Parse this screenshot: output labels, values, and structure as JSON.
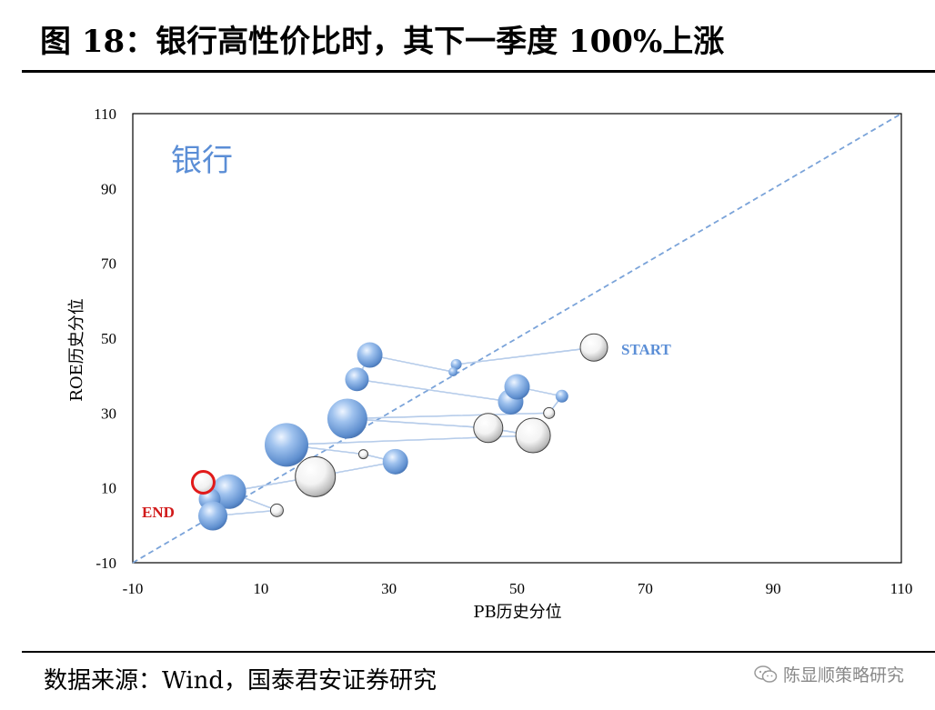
{
  "title": "图 18：银行高性价比时，其下一季度 100%上涨",
  "source": "数据来源：Wind，国泰君安证券研究",
  "watermark": "陈显顺策略研究",
  "chart_data": {
    "type": "scatter",
    "title": "",
    "annotation": "银行",
    "xlabel": "PB历史分位",
    "ylabel": "ROE历史分位",
    "xlim": [
      -10,
      110
    ],
    "ylim": [
      -10,
      110
    ],
    "xticks": [
      "-10",
      "10",
      "30",
      "50",
      "70",
      "90",
      "110"
    ],
    "yticks": [
      "-10",
      "10",
      "30",
      "50",
      "70",
      "90",
      "110"
    ],
    "grid": false,
    "reference_line": "y = x",
    "start_label": "START",
    "end_label": "END",
    "colors": {
      "blue": "#6f9fd8",
      "white": "#e8e8e8",
      "end": "#e11a1a",
      "line": "#8fb1df",
      "label_blue": "#5b8ed6",
      "label_red": "#d11a1a"
    },
    "points": [
      {
        "x": 62,
        "y": 47.5,
        "size": 15,
        "fill": "white"
      },
      {
        "x": 40.5,
        "y": 43,
        "size": 6,
        "fill": "blue"
      },
      {
        "x": 40,
        "y": 41,
        "size": 5,
        "fill": "blue"
      },
      {
        "x": 27,
        "y": 45.5,
        "size": 14,
        "fill": "blue"
      },
      {
        "x": 25,
        "y": 39,
        "size": 13,
        "fill": "blue"
      },
      {
        "x": 49,
        "y": 33,
        "size": 14,
        "fill": "blue"
      },
      {
        "x": 50,
        "y": 37,
        "size": 14,
        "fill": "blue"
      },
      {
        "x": 57,
        "y": 34.5,
        "size": 7,
        "fill": "blue"
      },
      {
        "x": 55,
        "y": 30,
        "size": 6,
        "fill": "white"
      },
      {
        "x": 23.5,
        "y": 28.5,
        "size": 22,
        "fill": "blue"
      },
      {
        "x": 45.5,
        "y": 26,
        "size": 16,
        "fill": "white"
      },
      {
        "x": 52.5,
        "y": 24,
        "size": 19,
        "fill": "white"
      },
      {
        "x": 14,
        "y": 21.5,
        "size": 24,
        "fill": "blue"
      },
      {
        "x": 26,
        "y": 19,
        "size": 5,
        "fill": "white"
      },
      {
        "x": 31,
        "y": 17,
        "size": 14,
        "fill": "blue"
      },
      {
        "x": 18.5,
        "y": 13,
        "size": 22,
        "fill": "white"
      },
      {
        "x": 5,
        "y": 9,
        "size": 19,
        "fill": "blue"
      },
      {
        "x": 2,
        "y": 7,
        "size": 12,
        "fill": "blue"
      },
      {
        "x": 2.5,
        "y": 2.5,
        "size": 16,
        "fill": "blue"
      },
      {
        "x": 12.5,
        "y": 4,
        "size": 7,
        "fill": "white"
      },
      {
        "x": 1,
        "y": 11.5,
        "size": 12,
        "fill": "end"
      }
    ]
  }
}
